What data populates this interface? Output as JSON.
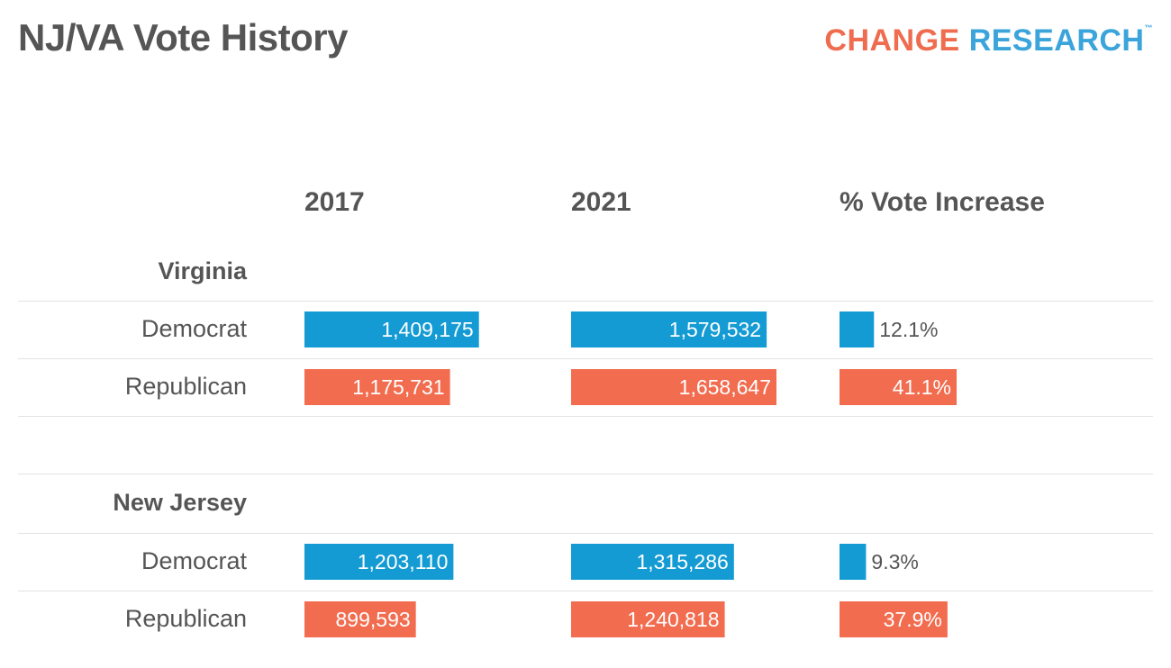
{
  "title": "NJ/VA Vote History",
  "logo": {
    "part1": "CHANGE",
    "part2": "RESEARCH",
    "tm": "™"
  },
  "columns": [
    "2017",
    "2021",
    "% Vote Increase"
  ],
  "colors": {
    "democrat": "#149bd4",
    "republican": "#f26c4f",
    "text": "#555555",
    "rule": "#e3e3e3"
  },
  "chart_data": {
    "type": "table",
    "groups": [
      {
        "state": "Virginia",
        "rows": [
          {
            "party": "Democrat",
            "v2017": 1409175,
            "v2017_label": "1,409,175",
            "v2021": 1579532,
            "v2021_label": "1,579,532",
            "increase": 12.1,
            "increase_label": "12.1%"
          },
          {
            "party": "Republican",
            "v2017": 1175731,
            "v2017_label": "1,175,731",
            "v2021": 1658647,
            "v2021_label": "1,658,647",
            "increase": 41.1,
            "increase_label": "41.1%"
          }
        ]
      },
      {
        "state": "New Jersey",
        "rows": [
          {
            "party": "Democrat",
            "v2017": 1203110,
            "v2017_label": "1,203,110",
            "v2021": 1315286,
            "v2021_label": "1,315,286",
            "increase": 9.3,
            "increase_label": "9.3%"
          },
          {
            "party": "Republican",
            "v2017": 899593,
            "v2017_label": "899,593",
            "v2021": 1240818,
            "v2021_label": "1,240,818",
            "increase": 37.9,
            "increase_label": "37.9%"
          }
        ]
      }
    ]
  }
}
